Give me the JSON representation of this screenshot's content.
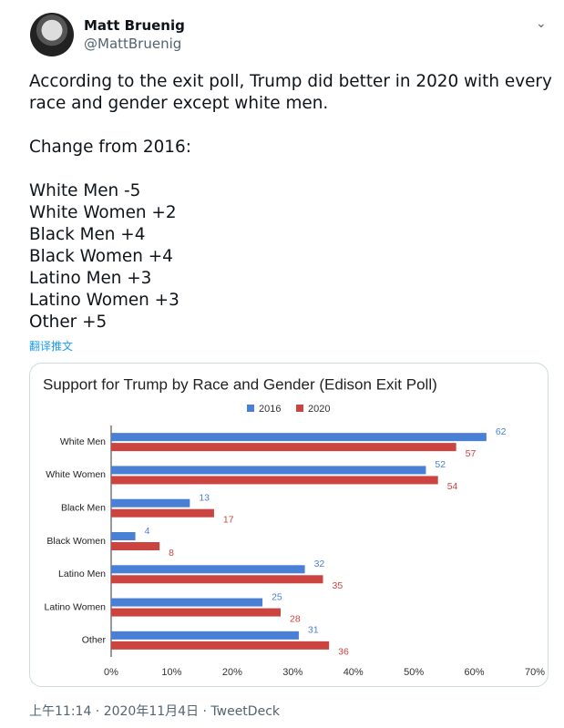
{
  "tweet": {
    "name": "Matt Bruenig",
    "handle": "@MattBruenig",
    "paragraphs": [
      "According to the exit poll, Trump did better in 2020 with every race and gender except white men.",
      "Change from 2016:"
    ],
    "changes": [
      "White Men -5",
      "White Women +2",
      "Black Men +4",
      "Black Women +4",
      "Latino Men +3",
      "Latino Women +3",
      "Other +5"
    ],
    "translate": "翻译推文",
    "footer": "上午11:14 · 2020年11月4日 · TweetDeck"
  },
  "chart_data": {
    "type": "hbar",
    "title": "Support for Trump by Race and Gender (Edison Exit Poll)",
    "categories": [
      "White Men",
      "White Women",
      "Black Men",
      "Black Women",
      "Latino Men",
      "Latino Women",
      "Other"
    ],
    "series": [
      {
        "name": "2016",
        "color": "#4a7fd6",
        "values": [
          62,
          52,
          13,
          4,
          32,
          25,
          31
        ]
      },
      {
        "name": "2020",
        "color": "#cc4440",
        "values": [
          57,
          54,
          17,
          8,
          35,
          28,
          36
        ]
      }
    ],
    "xlim": [
      0,
      70
    ],
    "xticks": [
      {
        "value": 0,
        "label": "0%"
      },
      {
        "value": 10,
        "label": "10%"
      },
      {
        "value": 20,
        "label": "20%"
      },
      {
        "value": 30,
        "label": "30%"
      },
      {
        "value": 40,
        "label": "40%"
      },
      {
        "value": 50,
        "label": "50%"
      },
      {
        "value": 60,
        "label": "60%"
      },
      {
        "value": 70,
        "label": "70%"
      }
    ],
    "legend": "top"
  }
}
